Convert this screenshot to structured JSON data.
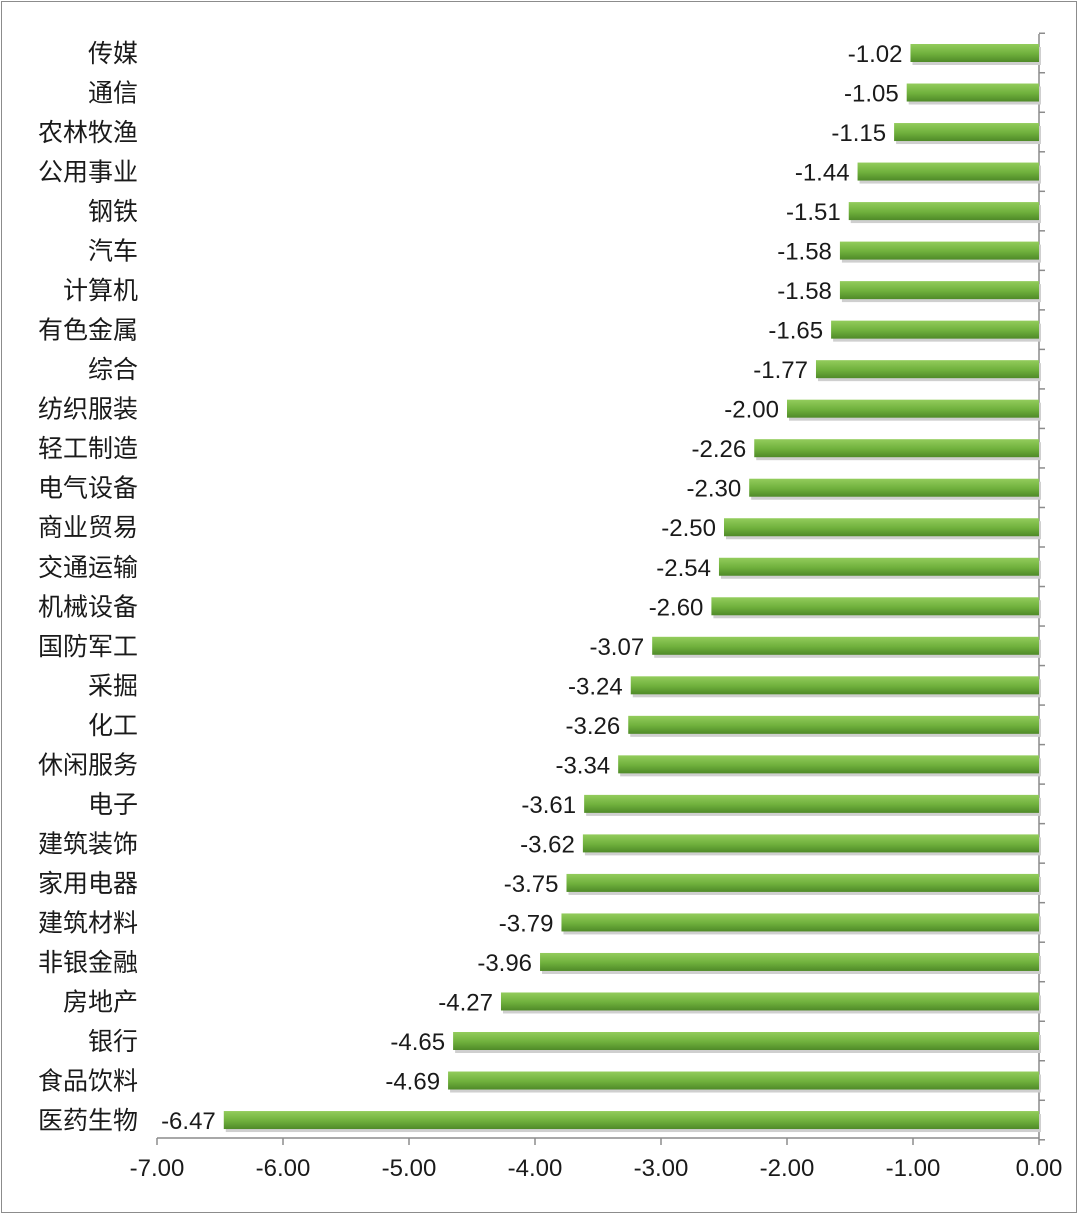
{
  "chart_data": {
    "type": "bar",
    "orientation": "horizontal",
    "title": "",
    "xlabel": "",
    "ylabel": "",
    "xlim": [
      -7.0,
      0.0
    ],
    "grid": false,
    "legend": "none",
    "bar_color": "#6fb03c",
    "categories": [
      "传媒",
      "通信",
      "农林牧渔",
      "公用事业",
      "钢铁",
      "汽车",
      "计算机",
      "有色金属",
      "综合",
      "纺织服装",
      "轻工制造",
      "电气设备",
      "商业贸易",
      "交通运输",
      "机械设备",
      "国防军工",
      "采掘",
      "化工",
      "休闲服务",
      "电子",
      "建筑装饰",
      "家用电器",
      "建筑材料",
      "非银金融",
      "房地产",
      "银行",
      "食品饮料",
      "医药生物"
    ],
    "values": [
      -1.02,
      -1.05,
      -1.15,
      -1.44,
      -1.51,
      -1.58,
      -1.58,
      -1.65,
      -1.77,
      -2.0,
      -2.26,
      -2.3,
      -2.5,
      -2.54,
      -2.6,
      -3.07,
      -3.24,
      -3.26,
      -3.34,
      -3.61,
      -3.62,
      -3.75,
      -3.79,
      -3.96,
      -4.27,
      -4.65,
      -4.69,
      -6.47
    ],
    "value_labels": [
      "-1.02",
      "-1.05",
      "-1.15",
      "-1.44",
      "-1.51",
      "-1.58",
      "-1.58",
      "-1.65",
      "-1.77",
      "-2.00",
      "-2.26",
      "-2.30",
      "-2.50",
      "-2.54",
      "-2.60",
      "-3.07",
      "-3.24",
      "-3.26",
      "-3.34",
      "-3.61",
      "-3.62",
      "-3.75",
      "-3.79",
      "-3.96",
      "-4.27",
      "-4.65",
      "-4.69",
      "-6.47"
    ],
    "x_ticks": [
      -7,
      -6,
      -5,
      -4,
      -3,
      -2,
      -1,
      0
    ],
    "x_tick_labels": [
      "-7.00",
      "-6.00",
      "-5.00",
      "-4.00",
      "-3.00",
      "-2.00",
      "-1.00",
      "0.00"
    ]
  }
}
